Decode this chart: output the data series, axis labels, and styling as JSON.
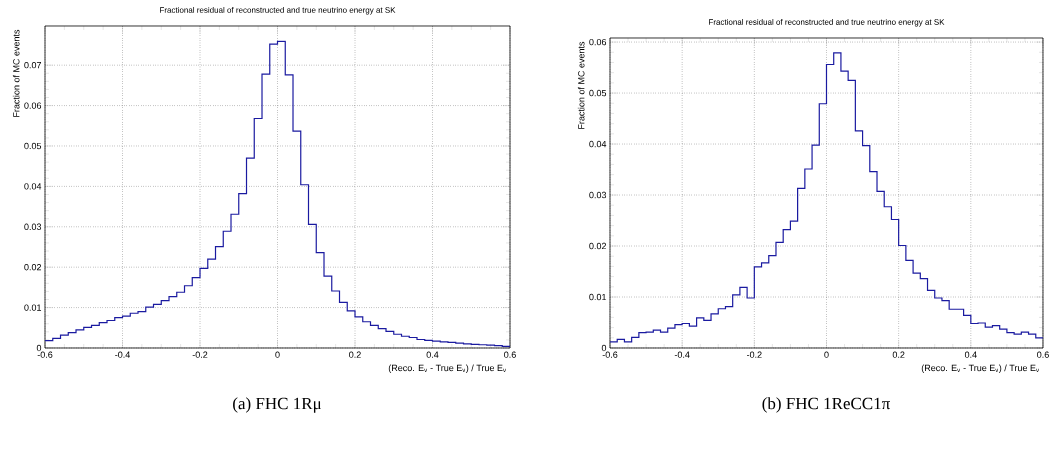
{
  "chart_data": [
    {
      "type": "histogram",
      "title": "Fractional residual of reconstructed and true neutrino energy at SK",
      "xlabel": "(Reco. E$_{ν}$ - True E$_{ν}$) / True E$_{ν}$",
      "ylabel": "Fraction of MC events",
      "annotations": [
        "(a) FHC 1Rμ"
      ],
      "color": "#1a1aa0",
      "grid": true,
      "xlim": [
        -0.6,
        0.6
      ],
      "ylim": [
        0,
        0.0797
      ],
      "xticks": [
        -0.6,
        -0.4,
        -0.2,
        0,
        0.2,
        0.4,
        0.6
      ],
      "yticks": [
        0,
        0.01,
        0.02,
        0.03,
        0.04,
        0.05,
        0.06,
        0.07
      ],
      "bins": [
        -0.6,
        -0.58,
        -0.56,
        -0.54,
        -0.52,
        -0.5,
        -0.48,
        -0.46,
        -0.44,
        -0.42,
        -0.4,
        -0.38,
        -0.36,
        -0.34,
        -0.32,
        -0.3,
        -0.28,
        -0.26,
        -0.24,
        -0.22,
        -0.2,
        -0.18,
        -0.16,
        -0.14,
        -0.12,
        -0.1,
        -0.08,
        -0.06,
        -0.04,
        -0.02,
        0,
        0.02,
        0.04,
        0.06,
        0.08,
        0.1,
        0.12,
        0.14,
        0.16,
        0.18,
        0.2,
        0.22,
        0.24,
        0.26,
        0.28,
        0.3,
        0.32,
        0.34,
        0.36,
        0.38,
        0.4,
        0.42,
        0.44,
        0.46,
        0.48,
        0.5,
        0.52,
        0.54,
        0.56,
        0.58,
        0.6
      ],
      "values": [
        0.0018,
        0.0024,
        0.0032,
        0.0038,
        0.0045,
        0.0051,
        0.0056,
        0.0063,
        0.0068,
        0.0075,
        0.0079,
        0.0086,
        0.009,
        0.0101,
        0.0108,
        0.0117,
        0.0127,
        0.0138,
        0.0154,
        0.0174,
        0.0197,
        0.022,
        0.0251,
        0.0289,
        0.0331,
        0.0382,
        0.047,
        0.0568,
        0.0678,
        0.0752,
        0.0759,
        0.0676,
        0.0537,
        0.0404,
        0.0306,
        0.0236,
        0.0178,
        0.0141,
        0.0113,
        0.0092,
        0.0077,
        0.0065,
        0.0056,
        0.0048,
        0.0041,
        0.0034,
        0.0029,
        0.0026,
        0.0021,
        0.0019,
        0.0017,
        0.0015,
        0.0014,
        0.0012,
        0.001,
        0.0009,
        0.0008,
        0.0007,
        0.0006,
        0.0004
      ]
    },
    {
      "type": "histogram",
      "title": "Fractional residual of reconstructed and true neutrino energy at SK",
      "xlabel": "(Reco. E$_{ν}$ - True E$_{ν}$) / True E$_{ν}$",
      "ylabel": "Fraction of MC events",
      "annotations": [
        "(b) FHC 1ReCC1π"
      ],
      "color": "#1a1aa0",
      "grid": true,
      "xlim": [
        -0.6,
        0.6
      ],
      "ylim": [
        0,
        0.0608
      ],
      "xticks": [
        -0.6,
        -0.4,
        -0.2,
        0,
        0.2,
        0.4,
        0.6
      ],
      "yticks": [
        0,
        0.01,
        0.02,
        0.03,
        0.04,
        0.05,
        0.06
      ],
      "bins": [
        -0.6,
        -0.58,
        -0.56,
        -0.54,
        -0.52,
        -0.5,
        -0.48,
        -0.46,
        -0.44,
        -0.42,
        -0.4,
        -0.38,
        -0.36,
        -0.34,
        -0.32,
        -0.3,
        -0.28,
        -0.26,
        -0.24,
        -0.22,
        -0.2,
        -0.18,
        -0.16,
        -0.14,
        -0.12,
        -0.1,
        -0.08,
        -0.06,
        -0.04,
        -0.02,
        0,
        0.02,
        0.04,
        0.06,
        0.08,
        0.1,
        0.12,
        0.14,
        0.16,
        0.18,
        0.2,
        0.22,
        0.24,
        0.26,
        0.28,
        0.3,
        0.32,
        0.34,
        0.36,
        0.38,
        0.4,
        0.42,
        0.44,
        0.46,
        0.48,
        0.5,
        0.52,
        0.54,
        0.56,
        0.58,
        0.6
      ],
      "values": [
        0.0012,
        0.0017,
        0.0012,
        0.0021,
        0.003,
        0.0031,
        0.0035,
        0.0031,
        0.0039,
        0.0046,
        0.0048,
        0.0043,
        0.0059,
        0.0054,
        0.0067,
        0.0077,
        0.0081,
        0.0104,
        0.0119,
        0.0098,
        0.0159,
        0.0167,
        0.0181,
        0.0207,
        0.0232,
        0.0249,
        0.0313,
        0.0351,
        0.0398,
        0.0479,
        0.0556,
        0.0579,
        0.0543,
        0.0525,
        0.0426,
        0.0397,
        0.0346,
        0.0307,
        0.0277,
        0.0252,
        0.0201,
        0.0172,
        0.0147,
        0.0136,
        0.0113,
        0.0098,
        0.0093,
        0.0076,
        0.0076,
        0.0064,
        0.0048,
        0.0049,
        0.0041,
        0.0044,
        0.0037,
        0.003,
        0.0027,
        0.0031,
        0.0027,
        0.002
      ]
    }
  ]
}
